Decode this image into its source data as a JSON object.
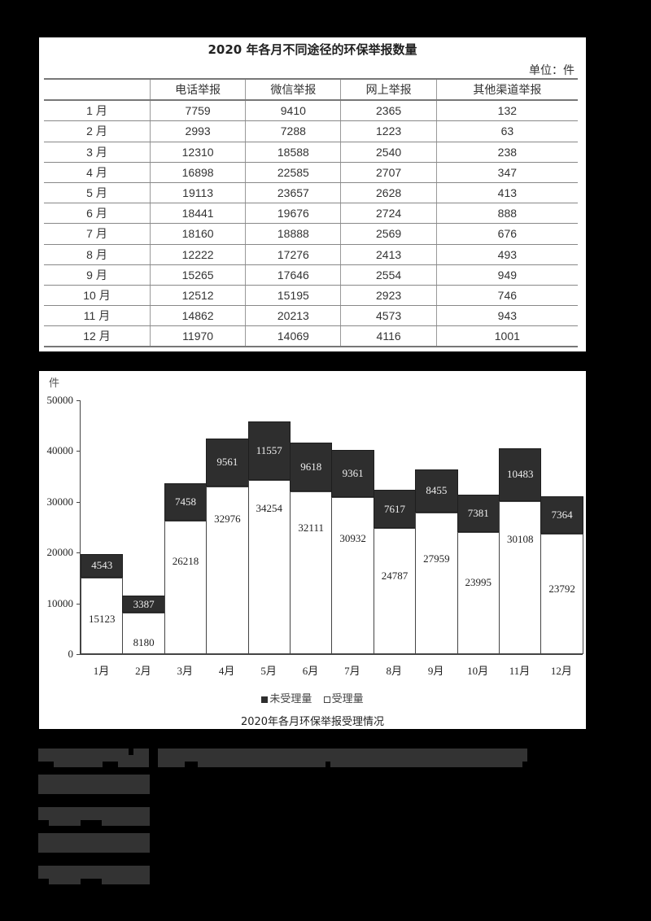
{
  "table": {
    "title": "2020 年各月不同途径的环保举报数量",
    "unit": "单位：件",
    "columns": [
      "",
      "电话举报",
      "微信举报",
      "网上举报",
      "其他渠道举报"
    ],
    "rows": [
      [
        "1 月",
        "7759",
        "9410",
        "2365",
        "132"
      ],
      [
        "2 月",
        "2993",
        "7288",
        "1223",
        "63"
      ],
      [
        "3 月",
        "12310",
        "18588",
        "2540",
        "238"
      ],
      [
        "4 月",
        "16898",
        "22585",
        "2707",
        "347"
      ],
      [
        "5 月",
        "19113",
        "23657",
        "2628",
        "413"
      ],
      [
        "6 月",
        "18441",
        "19676",
        "2724",
        "888"
      ],
      [
        "7 月",
        "18160",
        "18888",
        "2569",
        "676"
      ],
      [
        "8 月",
        "12222",
        "17276",
        "2413",
        "493"
      ],
      [
        "9 月",
        "15265",
        "17646",
        "2554",
        "949"
      ],
      [
        "10 月",
        "12512",
        "15195",
        "2923",
        "746"
      ],
      [
        "11 月",
        "14862",
        "20213",
        "4573",
        "943"
      ],
      [
        "12 月",
        "11970",
        "14069",
        "4116",
        "1001"
      ]
    ]
  },
  "chart": {
    "unit": "件",
    "title": "2020年各月环保举报受理情况",
    "legend": {
      "unaccepted": "未受理量",
      "accepted": "受理量"
    },
    "y_ticks": [
      "0",
      "10000",
      "20000",
      "30000",
      "40000",
      "50000"
    ]
  },
  "chart_data": [
    {
      "type": "table",
      "title": "2020 年各月不同途径的环保举报数量",
      "unit": "件",
      "categories": [
        "1月",
        "2月",
        "3月",
        "4月",
        "5月",
        "6月",
        "7月",
        "8月",
        "9月",
        "10月",
        "11月",
        "12月"
      ],
      "series": [
        {
          "name": "电话举报",
          "values": [
            7759,
            2993,
            12310,
            16898,
            19113,
            18441,
            18160,
            12222,
            15265,
            12512,
            14862,
            11970
          ]
        },
        {
          "name": "微信举报",
          "values": [
            9410,
            7288,
            18588,
            22585,
            23657,
            19676,
            18888,
            17276,
            17646,
            15195,
            20213,
            14069
          ]
        },
        {
          "name": "网上举报",
          "values": [
            2365,
            1223,
            2540,
            2707,
            2628,
            2724,
            2569,
            2413,
            2554,
            2923,
            4573,
            4116
          ]
        },
        {
          "name": "其他渠道举报",
          "values": [
            132,
            63,
            238,
            347,
            413,
            888,
            676,
            493,
            949,
            746,
            943,
            1001
          ]
        }
      ]
    },
    {
      "type": "bar",
      "stacked": true,
      "title": "2020年各月环保举报受理情况",
      "xlabel": "",
      "ylabel": "件",
      "ylim": [
        0,
        50000
      ],
      "y_ticks": [
        0,
        10000,
        20000,
        30000,
        40000,
        50000
      ],
      "grid": false,
      "legend_position": "bottom",
      "categories": [
        "1月",
        "2月",
        "3月",
        "4月",
        "5月",
        "6月",
        "7月",
        "8月",
        "9月",
        "10月",
        "11月",
        "12月"
      ],
      "series": [
        {
          "name": "受理量",
          "values": [
            15123,
            8180,
            26218,
            32976,
            34254,
            32111,
            30932,
            24787,
            27959,
            23995,
            30108,
            23792
          ]
        },
        {
          "name": "未受理量",
          "values": [
            4543,
            3387,
            7458,
            9561,
            11557,
            9618,
            9361,
            7617,
            8455,
            7381,
            10483,
            7364
          ]
        }
      ]
    }
  ]
}
